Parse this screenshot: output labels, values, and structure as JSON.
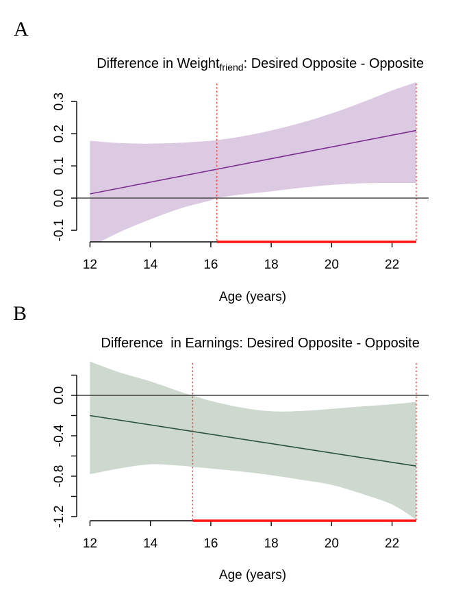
{
  "chart_data": [
    {
      "type": "line",
      "panel": "A",
      "title": "Difference in Weight(friend): Desired Opposite - Opposite",
      "title_parts": {
        "pre": "Difference in Weight",
        "sub": "friend",
        "post": ": Desired Opposite - Opposite"
      },
      "xlabel": "Age (years)",
      "x_ticks": [
        12,
        14,
        16,
        18,
        20,
        22
      ],
      "x_tick_labels": [
        "12",
        "14",
        "16",
        "18",
        "20",
        "22"
      ],
      "y_ticks_labeled": [
        [
          -0.1,
          "-0.1"
        ],
        [
          0.0,
          "0.0"
        ],
        [
          0.1,
          "0.1"
        ],
        [
          0.2,
          "0.2"
        ],
        [
          0.3,
          "0.3"
        ]
      ],
      "y_ticks_minor": [],
      "xlim": [
        11.56,
        23.21
      ],
      "ylim": [
        -0.136,
        0.362
      ],
      "zero_reference_line": 0.0,
      "regression_line": {
        "x": [
          12,
          22.8
        ],
        "y": [
          0.013,
          0.21
        ]
      },
      "confidence_band": {
        "x": [
          12,
          13,
          14,
          15,
          16,
          16.2,
          17,
          18,
          19,
          20,
          21,
          22,
          22.8
        ],
        "upper": [
          0.178,
          0.171,
          0.169,
          0.172,
          0.178,
          0.18,
          0.191,
          0.21,
          0.234,
          0.263,
          0.297,
          0.334,
          0.36
        ],
        "lower": [
          -0.152,
          -0.105,
          -0.066,
          -0.032,
          -0.007,
          0.0,
          0.011,
          0.021,
          0.032,
          0.041,
          0.046,
          0.047,
          0.047
        ]
      },
      "johnson_neyman_interval": {
        "start": 16.2,
        "end": 22.8
      },
      "colors": {
        "line": "#7b2f8e",
        "band": "#dccae3",
        "significance": "#ff1212",
        "dotted": "#f4453a",
        "zero_line": "#3d3d3d",
        "axis": "#000000"
      }
    },
    {
      "type": "line",
      "panel": "B",
      "title": "Difference  in Earnings: Desired Opposite - Opposite",
      "title_parts": {
        "pre": "Difference  in Earnings: Desired Opposite - Opposite",
        "sub": "",
        "post": ""
      },
      "xlabel": "Age (years)",
      "x_ticks": [
        12,
        14,
        16,
        18,
        20,
        22
      ],
      "x_tick_labels": [
        "12",
        "14",
        "16",
        "18",
        "20",
        "22"
      ],
      "y_ticks_labeled": [
        [
          0.0,
          "0.0"
        ],
        [
          -0.4,
          "-0.4"
        ],
        [
          -0.8,
          "-0.8"
        ],
        [
          -1.2,
          "-1.2"
        ]
      ],
      "y_ticks_minor": [
        0.2,
        -0.2,
        -0.6,
        -1.0
      ],
      "xlim": [
        11.56,
        23.21
      ],
      "ylim": [
        -1.241,
        0.339
      ],
      "zero_reference_line": 0.0,
      "regression_line": {
        "x": [
          12,
          22.8
        ],
        "y": [
          -0.2,
          -0.7
        ]
      },
      "confidence_band": {
        "x": [
          12,
          13,
          14,
          15,
          15.4,
          16,
          17,
          18,
          19,
          20,
          21,
          22,
          22.8
        ],
        "upper": [
          0.335,
          0.225,
          0.138,
          0.035,
          0.0,
          -0.055,
          -0.12,
          -0.158,
          -0.155,
          -0.134,
          -0.11,
          -0.088,
          -0.065
        ],
        "lower": [
          -0.78,
          -0.722,
          -0.682,
          -0.696,
          -0.708,
          -0.724,
          -0.754,
          -0.79,
          -0.836,
          -0.886,
          -0.975,
          -1.08,
          -1.23
        ]
      },
      "johnson_neyman_interval": {
        "start": 15.4,
        "end": 22.8
      },
      "colors": {
        "line": "#2a5140",
        "band": "#cdd8ce",
        "significance": "#ff1212",
        "dotted": "#f4453a",
        "zero_line": "#3d3d3d",
        "axis": "#000000"
      }
    }
  ]
}
